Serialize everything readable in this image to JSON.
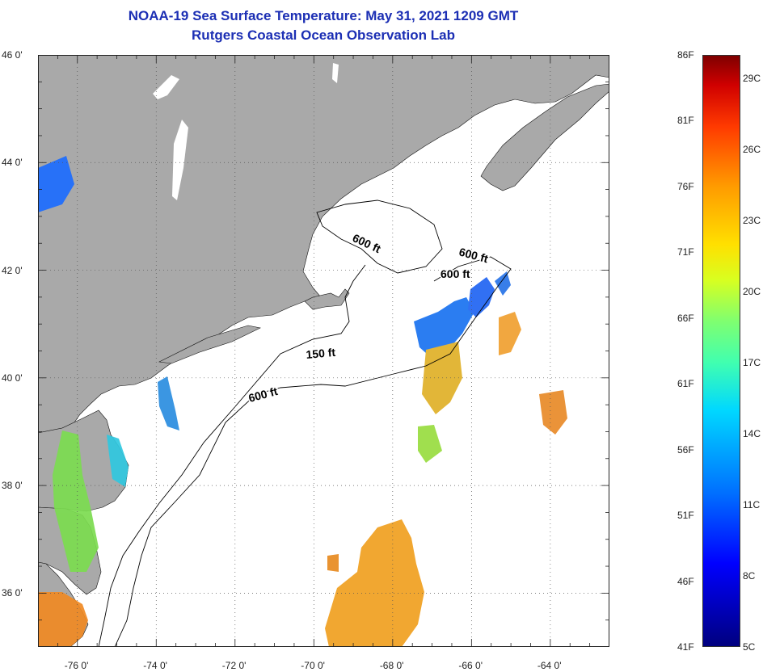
{
  "header": {
    "title_line1": "NOAA-19 Sea Surface Temperature:  May 31, 2021 1209 GMT",
    "title_line2": "Rutgers Coastal Ocean Observation Lab"
  },
  "map": {
    "lat_labels": [
      "46 0'",
      "44 0'",
      "42 0'",
      "40 0'",
      "38 0'",
      "36 0'"
    ],
    "lon_labels": [
      "-76 0'",
      "-74 0'",
      "-72 0'",
      "-70 0'",
      "-68 0'",
      "-66 0'",
      "-64 0'"
    ],
    "lat_range": [
      35,
      46
    ],
    "lon_range": [
      -77,
      -62.5
    ],
    "contour_labels": [
      "600 ft",
      "600 ft",
      "600 ft",
      "150 ft",
      "600 ft"
    ],
    "colors": {
      "land": "#a9a9a9",
      "ocean": "#ffffff",
      "contour": "#000000"
    }
  },
  "colorbar": {
    "fahrenheit_labels": [
      "86F",
      "81F",
      "76F",
      "71F",
      "66F",
      "61F",
      "56F",
      "51F",
      "46F",
      "41F"
    ],
    "celsius_labels": [
      "29C",
      "26C",
      "23C",
      "20C",
      "17C",
      "14C",
      "11C",
      "8C",
      "5C"
    ],
    "f_range": [
      41,
      86
    ]
  }
}
